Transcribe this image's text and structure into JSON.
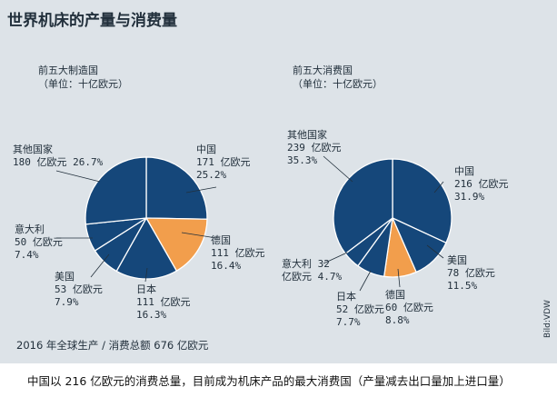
{
  "title": "世界机床的产量与消费量",
  "caption": "中国以 216 亿欧元的消费总量，目前成为机床产品的最大消费国（产量减去出口量加上进口量）",
  "footnote": "2016 年全球生产 / 消费总额 676 亿欧元",
  "credit": "Bild:VDW",
  "colors": {
    "blue": "#15477a",
    "orange": "#f29e4c",
    "background": "#dde3e8",
    "text": "#22303c"
  },
  "chart_data": [
    {
      "type": "pie",
      "title": "前五大制造国",
      "subtitle": "（单位：十亿欧元）",
      "slices": [
        {
          "label": "中国",
          "value": 171,
          "value_text": "171 亿欧元",
          "percent": "25.2%",
          "color": "#15477a"
        },
        {
          "label": "德国",
          "value": 111,
          "value_text": "111 亿欧元",
          "percent": "16.4%",
          "color": "#f29e4c"
        },
        {
          "label": "日本",
          "value": 111,
          "value_text": "111 亿欧元",
          "percent": "16.3%",
          "color": "#15477a"
        },
        {
          "label": "美国",
          "value": 53,
          "value_text": "53 亿欧元",
          "percent": "7.9%",
          "color": "#15477a"
        },
        {
          "label": "意大利",
          "value": 50,
          "value_text": "50 亿欧元",
          "percent": "7.4%",
          "color": "#15477a"
        },
        {
          "label": "其他国家",
          "value": 180,
          "value_text": "180 亿欧元",
          "percent": "26.7%",
          "color": "#15477a"
        }
      ]
    },
    {
      "type": "pie",
      "title": "前五大消费国",
      "subtitle": "（单位：十亿欧元）",
      "slices": [
        {
          "label": "中国",
          "value": 216,
          "value_text": "216 亿欧元",
          "percent": "31.9%",
          "color": "#15477a"
        },
        {
          "label": "美国",
          "value": 78,
          "value_text": "78 亿欧元",
          "percent": "11.5%",
          "color": "#15477a"
        },
        {
          "label": "德国",
          "value": 60,
          "value_text": "60 亿欧元",
          "percent": "8.8%",
          "color": "#f29e4c"
        },
        {
          "label": "日本",
          "value": 52,
          "value_text": "52 亿欧元",
          "percent": "7.7%",
          "color": "#15477a"
        },
        {
          "label": "意大利",
          "value": 32,
          "value_text": "32",
          "value_text2": "亿欧元",
          "percent": "4.7%",
          "color": "#15477a"
        },
        {
          "label": "其他国家",
          "value": 239,
          "value_text": "239 亿欧元",
          "percent": "35.3%",
          "color": "#15477a"
        }
      ]
    }
  ]
}
